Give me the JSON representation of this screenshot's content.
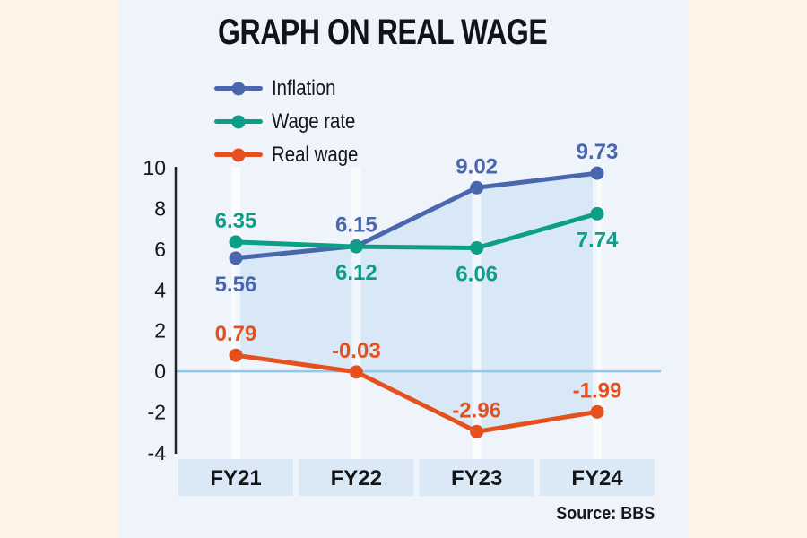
{
  "page": {
    "background_color": "#fef3e6",
    "panel_color": "#eef4fa"
  },
  "source": "Source: BBS",
  "chart_data": {
    "type": "line",
    "title": "GRAPH ON REAL WAGE",
    "categories": [
      "FY21",
      "FY22",
      "FY23",
      "FY24"
    ],
    "ylim": [
      -4,
      10
    ],
    "yticks": [
      10,
      8,
      6,
      4,
      2,
      0,
      -2,
      -4
    ],
    "grid": false,
    "legend_position": "top-left",
    "series": [
      {
        "name": "Inflation",
        "color": "#4a67ae",
        "values": [
          5.56,
          6.15,
          9.02,
          9.73
        ],
        "labels": [
          "5.56",
          "6.15",
          "9.02",
          "9.73"
        ],
        "label_pos": [
          "below",
          "above",
          "above",
          "above"
        ]
      },
      {
        "name": "Wage rate",
        "color": "#0d9e88",
        "values": [
          6.35,
          6.12,
          6.06,
          7.74
        ],
        "labels": [
          "6.35",
          "6.12",
          "6.06",
          "7.74"
        ],
        "label_pos": [
          "above",
          "below",
          "below",
          "below"
        ]
      },
      {
        "name": "Real wage",
        "color": "#e4511e",
        "values": [
          0.79,
          -0.03,
          -2.96,
          -1.99
        ],
        "labels": [
          "0.79",
          "-0.03",
          "-2.96",
          "-1.99"
        ],
        "label_pos": [
          "above",
          "above",
          "above",
          "above"
        ]
      }
    ],
    "fill_between": {
      "upper": [
        "Inflation",
        "Wage rate"
      ],
      "lower": "Real wage",
      "color": "#d8e8f7"
    },
    "colors": {
      "zero_line": "#90c9e9",
      "axis_line": "#23272b",
      "category_box": "#dbe9f6",
      "category_band": "#ffffff",
      "tick_text": "#14171a",
      "category_text": "#14171a"
    }
  }
}
